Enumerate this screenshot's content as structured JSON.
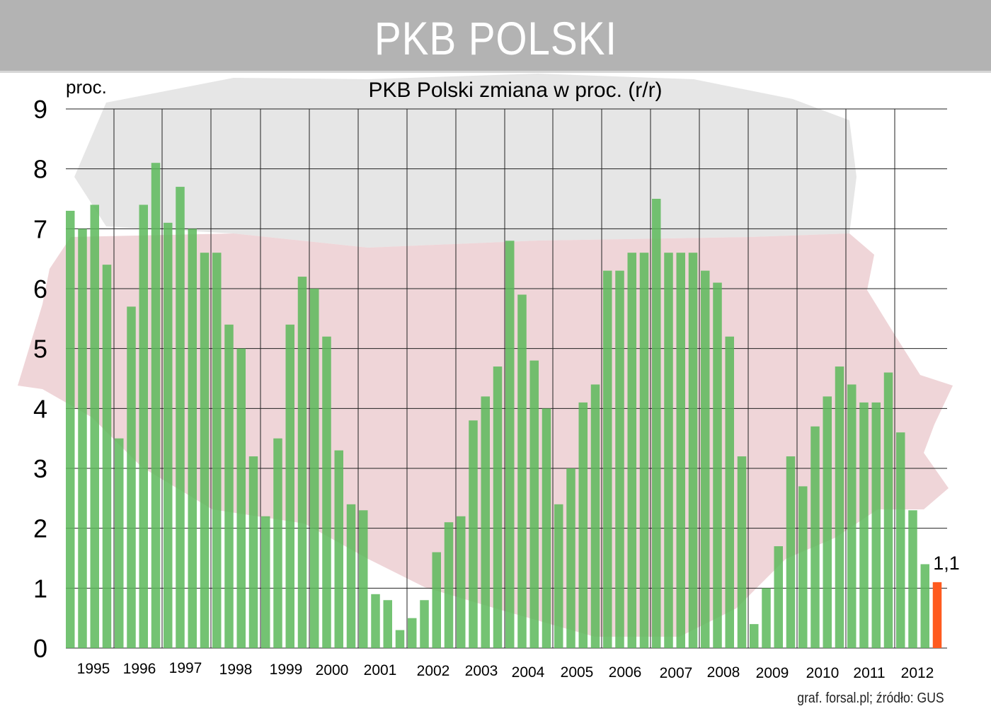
{
  "banner_title": "PKB POLSKI",
  "source_note": "graf. forsal.pl;  źródło: GUS",
  "colors": {
    "bar": "#5cb85a",
    "highlight_bar": "#ff5a1f",
    "banner": "#b3b3b3",
    "map_red": "#e9c5c8",
    "map_gray": "#dcdcdc"
  },
  "chart_data": {
    "type": "bar",
    "title": "PKB Polski zmiana w proc. (r/r)",
    "ylabel": "proc.",
    "ylim": [
      0,
      9
    ],
    "yticks": [
      "0",
      "1",
      "2",
      "3",
      "4",
      "5",
      "6",
      "7",
      "8",
      "9"
    ],
    "grid": true,
    "x_tick_labels": [
      "1995",
      "1996",
      "1997",
      "1998",
      "1999",
      "2000",
      "2001",
      "2002",
      "2003",
      "2004",
      "2005",
      "2006",
      "2007",
      "2008",
      "2009",
      "2010",
      "2011",
      "2012"
    ],
    "values": [
      7.3,
      7.0,
      7.4,
      6.4,
      3.5,
      5.7,
      7.4,
      8.1,
      7.1,
      7.7,
      7.0,
      6.6,
      6.6,
      5.4,
      5.0,
      3.2,
      2.2,
      3.5,
      5.4,
      6.2,
      6.0,
      5.2,
      3.3,
      2.4,
      2.3,
      0.9,
      0.8,
      0.3,
      0.5,
      0.8,
      1.6,
      2.1,
      2.2,
      3.8,
      4.2,
      4.7,
      6.8,
      5.9,
      4.8,
      4.0,
      2.4,
      3.0,
      4.1,
      4.4,
      6.3,
      6.3,
      6.6,
      6.6,
      7.5,
      6.6,
      6.6,
      6.6,
      6.3,
      6.1,
      5.2,
      3.2,
      0.4,
      1.0,
      1.7,
      3.2,
      2.7,
      3.7,
      4.2,
      4.7,
      4.4,
      4.1,
      4.1,
      4.6,
      3.6,
      2.3,
      1.4,
      1.1
    ],
    "highlight_index": 71,
    "annotations": [
      "1,1"
    ]
  }
}
